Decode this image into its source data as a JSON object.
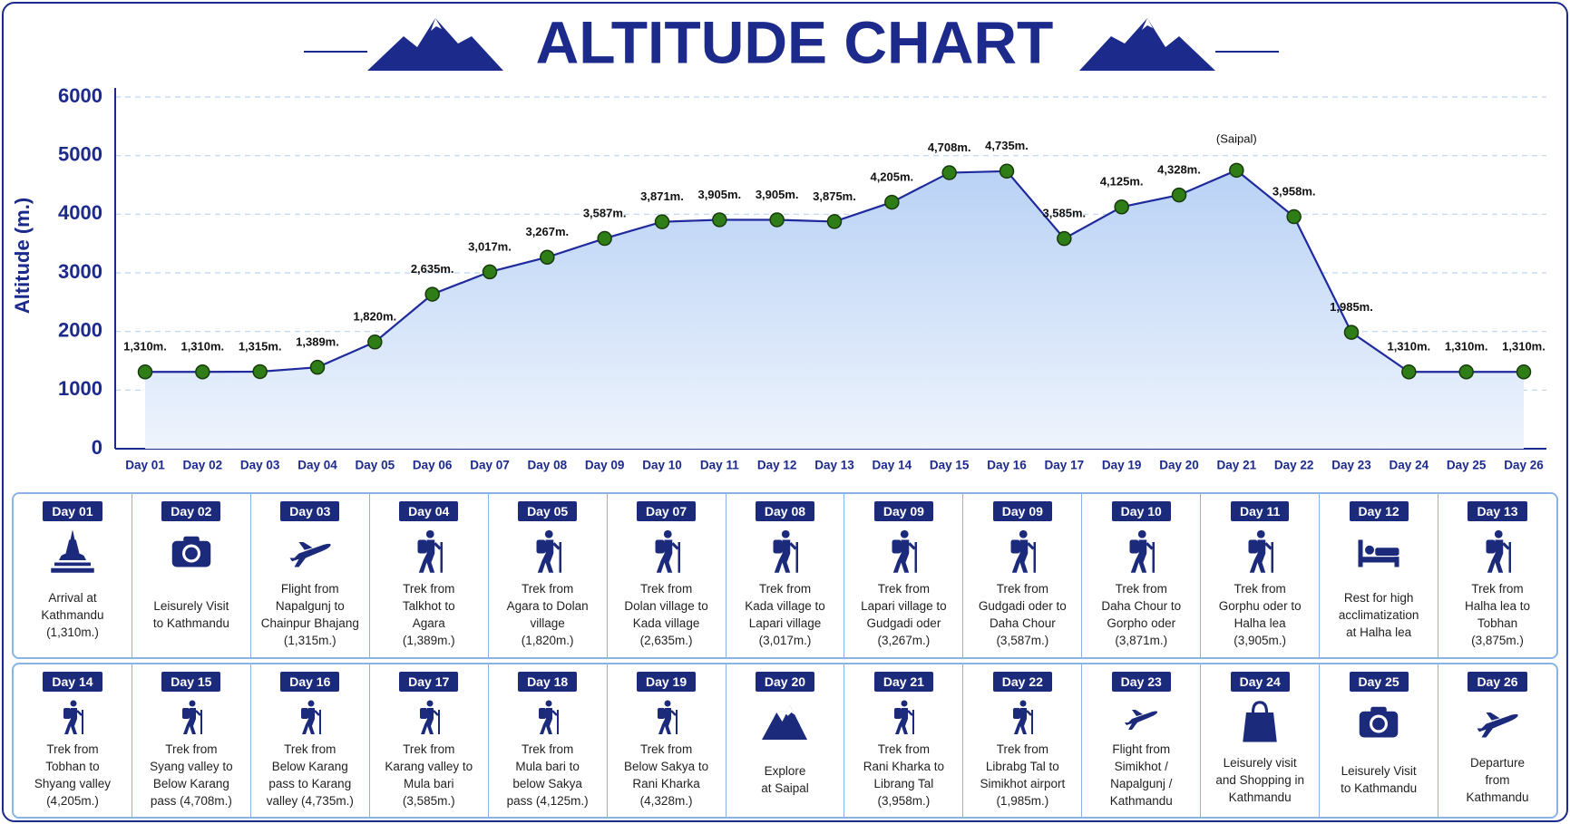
{
  "chart_data": {
    "type": "line",
    "title": "ALTITUDE CHART",
    "y_label": "Altitude (m.)",
    "categories": [
      "Day 01",
      "Day 02",
      "Day 03",
      "Day 04",
      "Day 05",
      "Day 06",
      "Day 07",
      "Day 08",
      "Day 09",
      "Day 10",
      "Day 11",
      "Day 12",
      "Day 13",
      "Day 14",
      "Day 15",
      "Day 16",
      "Day 17",
      "Day 19",
      "Day 20",
      "Day 21",
      "Day 22",
      "Day 23",
      "Day 24",
      "Day 25",
      "Day 26"
    ],
    "values": [
      1310,
      1310,
      1315,
      1389,
      1820,
      2635,
      3017,
      3267,
      3587,
      3871,
      3905,
      3905,
      3875,
      4205,
      4708,
      4735,
      3585,
      4125,
      4328,
      4750,
      3958,
      1985,
      1310,
      1310,
      1310
    ],
    "value_labels": [
      "1,310m.",
      "1,310m.",
      "1,315m.",
      "1,389m.",
      "1,820m.",
      "2,635m.",
      "3,017m.",
      "3,267m.",
      "3,587m.",
      "3,871m.",
      "3,905m.",
      "3,905m.",
      "3,875m.",
      "4,205m.",
      "4,708m.",
      "4,735m.",
      "3,585m.",
      "4,125m.",
      "4,328m.",
      null,
      "3,958m.",
      "1,985m.",
      "1,310m.",
      "1,310m.",
      "1,310m."
    ],
    "annotations": [
      {
        "text": "(Saipal)",
        "category": "Day 21"
      }
    ],
    "color": "#1f2a9c",
    "marker_color": "#2f7d16",
    "ylim": [
      0,
      6000
    ],
    "yticks": [
      0,
      1000,
      2000,
      3000,
      4000,
      5000,
      6000
    ],
    "grid": true
  },
  "itinerary": {
    "rows": [
      [
        {
          "day": "Day 01",
          "icon": "stupa",
          "lines": [
            "Arrival at",
            "Kathmandu",
            "(1,310m.)"
          ]
        },
        {
          "day": "Day 02",
          "icon": "camera",
          "lines": [
            "Leisurely Visit",
            "to Kathmandu"
          ]
        },
        {
          "day": "Day 03",
          "icon": "plane",
          "lines": [
            "Flight from",
            "Napalgunj to",
            "Chainpur Bhajang",
            "(1,315m.)"
          ]
        },
        {
          "day": "Day 04",
          "icon": "trek",
          "lines": [
            "Trek from",
            "Talkhot to",
            "Agara",
            "(1,389m.)"
          ]
        },
        {
          "day": "Day 05",
          "icon": "trek",
          "lines": [
            "Trek from",
            "Agara to Dolan",
            "village",
            "(1,820m.)"
          ]
        },
        {
          "day": "Day 07",
          "icon": "trek",
          "lines": [
            "Trek from",
            "Dolan village to",
            "Kada village",
            "(2,635m.)"
          ]
        },
        {
          "day": "Day 08",
          "icon": "trek",
          "lines": [
            "Trek from",
            "Kada village to",
            "Lapari village",
            "(3,017m.)"
          ]
        },
        {
          "day": "Day 09",
          "icon": "trek",
          "lines": [
            "Trek from",
            "Lapari village to",
            "Gudgadi oder",
            "(3,267m.)"
          ]
        },
        {
          "day": "Day 09",
          "icon": "trek",
          "lines": [
            "Trek from",
            "Gudgadi oder to",
            "Daha Chour",
            "(3,587m.)"
          ]
        },
        {
          "day": "Day 10",
          "icon": "trek",
          "lines": [
            "Trek from",
            "Daha Chour to",
            "Gorpho oder",
            "(3,871m.)"
          ]
        },
        {
          "day": "Day 11",
          "icon": "trek",
          "lines": [
            "Trek from",
            "Gorphu oder to",
            "Halha lea",
            "(3,905m.)"
          ]
        },
        {
          "day": "Day 12",
          "icon": "bed",
          "lines": [
            "Rest for high",
            "acclimatization",
            "at Halha lea"
          ]
        },
        {
          "day": "Day 13",
          "icon": "trek",
          "lines": [
            "Trek from",
            "Halha lea to",
            "Tobhan",
            "(3,875m.)"
          ]
        }
      ],
      [
        {
          "day": "Day 14",
          "icon": "trek",
          "lines": [
            "Trek from",
            "Tobhan to",
            "Shyang valley",
            "(4,205m.)"
          ]
        },
        {
          "day": "Day 15",
          "icon": "trek",
          "lines": [
            "Trek from",
            "Syang valley to",
            "Below Karang",
            "pass (4,708m.)"
          ]
        },
        {
          "day": "Day 16",
          "icon": "trek",
          "lines": [
            "Trek from",
            "Below Karang",
            "pass to Karang",
            "valley (4,735m.)"
          ]
        },
        {
          "day": "Day 17",
          "icon": "trek",
          "lines": [
            "Trek from",
            "Karang valley to",
            "Mula bari",
            "(3,585m.)"
          ]
        },
        {
          "day": "Day 18",
          "icon": "trek",
          "lines": [
            "Trek from",
            "Mula bari to",
            "below Sakya",
            "pass (4,125m.)"
          ]
        },
        {
          "day": "Day 19",
          "icon": "trek",
          "lines": [
            "Trek from",
            "Below Sakya to",
            "Rani Kharka",
            "(4,328m.)"
          ]
        },
        {
          "day": "Day 20",
          "icon": "mountain",
          "lines": [
            "Explore",
            "at Saipal"
          ]
        },
        {
          "day": "Day 21",
          "icon": "trek",
          "lines": [
            "Trek from",
            "Rani Kharka to",
            "Librang Tal",
            "(3,958m.)"
          ]
        },
        {
          "day": "Day 22",
          "icon": "trek",
          "lines": [
            "Trek from",
            "Librabg Tal to",
            "Simikhot airport",
            "(1,985m.)"
          ]
        },
        {
          "day": "Day 23",
          "icon": "plane",
          "lines": [
            "Flight from",
            "Simikhot /",
            "Napalgunj /",
            "Kathmandu"
          ]
        },
        {
          "day": "Day 24",
          "icon": "bag",
          "lines": [
            "Leisurely visit",
            "and Shopping in",
            "Kathmandu"
          ]
        },
        {
          "day": "Day 25",
          "icon": "camera",
          "lines": [
            "Leisurely Visit",
            "to Kathmandu"
          ]
        },
        {
          "day": "Day 26",
          "icon": "plane",
          "lines": [
            "Departure",
            "from",
            "Kathmandu"
          ]
        }
      ]
    ]
  }
}
